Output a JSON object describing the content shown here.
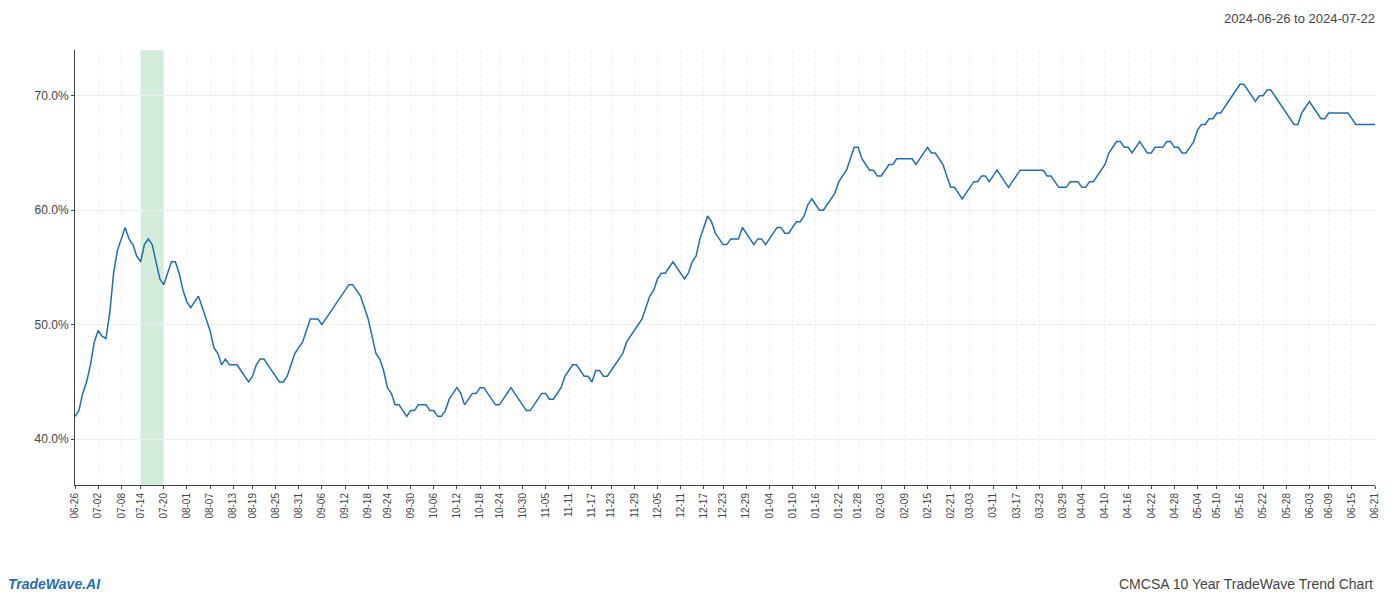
{
  "chart_data": {
    "type": "line",
    "title": "2024-06-26 to 2024-07-22",
    "annotations": [
      {
        "text": "TradeWave.AI",
        "color": "#1f6eb5"
      },
      {
        "text": "CMCSA 10 Year TradeWave Trend Chart"
      }
    ],
    "color": "#1f6eb5",
    "highlight": {
      "from": "07-14",
      "to": "07-20",
      "color": "#d4edda"
    },
    "ylim": [
      36.0,
      74.0
    ],
    "yticks": [
      {
        "value": 40.0,
        "label": "40.0%"
      },
      {
        "value": 50.0,
        "label": "50.0%"
      },
      {
        "value": 60.0,
        "label": "60.0%"
      },
      {
        "value": 70.0,
        "label": "70.0%"
      }
    ],
    "grid": true,
    "categories": [
      "06-26",
      null,
      null,
      null,
      null,
      null,
      "07-02",
      null,
      null,
      null,
      null,
      null,
      "07-08",
      null,
      null,
      null,
      null,
      "07-14",
      null,
      null,
      null,
      null,
      null,
      "07-20",
      null,
      null,
      null,
      null,
      null,
      "08-01",
      null,
      null,
      null,
      null,
      null,
      "08-07",
      null,
      null,
      null,
      null,
      null,
      "08-13",
      null,
      null,
      null,
      null,
      "08-19",
      null,
      null,
      null,
      null,
      null,
      "08-25",
      null,
      null,
      null,
      null,
      null,
      "08-31",
      null,
      null,
      null,
      null,
      null,
      "09-06",
      null,
      null,
      null,
      null,
      null,
      "09-12",
      null,
      null,
      null,
      null,
      null,
      "09-18",
      null,
      null,
      null,
      null,
      "09-24",
      null,
      null,
      null,
      null,
      null,
      "09-30",
      null,
      null,
      null,
      null,
      null,
      "10-06",
      null,
      null,
      null,
      null,
      null,
      "10-12",
      null,
      null,
      null,
      null,
      null,
      "10-18",
      null,
      null,
      null,
      null,
      "10-24",
      null,
      null,
      null,
      null,
      null,
      "10-30",
      null,
      null,
      null,
      null,
      null,
      "11-05",
      null,
      null,
      null,
      null,
      null,
      "11-11",
      null,
      null,
      null,
      null,
      null,
      "11-17",
      null,
      null,
      null,
      null,
      "11-23",
      null,
      null,
      null,
      null,
      null,
      "11-29",
      null,
      null,
      null,
      null,
      null,
      "12-05",
      null,
      null,
      null,
      null,
      null,
      "12-11",
      null,
      null,
      null,
      null,
      null,
      "12-17",
      null,
      null,
      null,
      null,
      "12-23",
      null,
      null,
      null,
      null,
      null,
      "12-29",
      null,
      null,
      null,
      null,
      null,
      "01-04",
      null,
      null,
      null,
      null,
      null,
      "01-10",
      null,
      null,
      null,
      null,
      null,
      "01-16",
      null,
      null,
      null,
      null,
      null,
      "01-22",
      null,
      null,
      null,
      null,
      "01-28",
      null,
      null,
      null,
      null,
      null,
      "02-03",
      null,
      null,
      null,
      null,
      null,
      "02-09",
      null,
      null,
      null,
      null,
      null,
      "02-15",
      null,
      null,
      null,
      null,
      null,
      "02-21",
      null,
      null,
      null,
      null,
      "03-03",
      null,
      null,
      null,
      null,
      null,
      "03-11",
      null,
      null,
      null,
      null,
      null,
      "03-17",
      null,
      null,
      null,
      null,
      null,
      "03-23",
      null,
      null,
      null,
      null,
      null,
      "03-29",
      null,
      null,
      null,
      null,
      "04-04",
      null,
      null,
      null,
      null,
      null,
      "04-10",
      null,
      null,
      null,
      null,
      null,
      "04-16",
      null,
      null,
      null,
      null,
      null,
      "04-22",
      null,
      null,
      null,
      null,
      null,
      "04-28",
      null,
      null,
      null,
      null,
      null,
      "05-04",
      null,
      null,
      null,
      null,
      "05-10",
      null,
      null,
      null,
      null,
      null,
      "05-16",
      null,
      null,
      null,
      null,
      null,
      "05-22",
      null,
      null,
      null,
      null,
      null,
      "05-28",
      null,
      null,
      null,
      null,
      null,
      "06-03",
      null,
      null,
      null,
      null,
      "06-09",
      null,
      null,
      null,
      null,
      null,
      "06-15",
      null,
      null,
      null,
      null,
      null,
      "06-21"
    ],
    "values": [
      42.0,
      42.5,
      44.0,
      45.0,
      46.5,
      48.5,
      49.5,
      49.0,
      48.8,
      51.0,
      54.5,
      56.5,
      57.5,
      58.5,
      57.5,
      57.0,
      56.0,
      55.5,
      57.0,
      57.5,
      57.0,
      55.5,
      54.0,
      53.5,
      54.5,
      55.5,
      55.5,
      54.5,
      53.0,
      52.0,
      51.5,
      52.0,
      52.5,
      51.5,
      50.5,
      49.5,
      48.0,
      47.5,
      46.5,
      47.0,
      46.5,
      46.5,
      46.5,
      46.0,
      45.5,
      45.0,
      45.5,
      46.5,
      47.0,
      47.0,
      46.5,
      46.0,
      45.5,
      45.0,
      45.0,
      45.5,
      46.5,
      47.5,
      48.0,
      48.5,
      49.5,
      50.5,
      50.5,
      50.5,
      50.0,
      50.5,
      51.0,
      51.5,
      52.0,
      52.5,
      53.0,
      53.5,
      53.5,
      53.0,
      52.5,
      51.5,
      50.5,
      49.0,
      47.5,
      47.0,
      46.0,
      44.5,
      44.0,
      43.0,
      43.0,
      42.5,
      42.0,
      42.5,
      42.5,
      43.0,
      43.0,
      43.0,
      42.5,
      42.5,
      42.0,
      42.0,
      42.5,
      43.5,
      44.0,
      44.5,
      44.0,
      43.0,
      43.5,
      44.0,
      44.0,
      44.5,
      44.5,
      44.0,
      43.5,
      43.0,
      43.0,
      43.5,
      44.0,
      44.5,
      44.0,
      43.5,
      43.0,
      42.5,
      42.5,
      43.0,
      43.5,
      44.0,
      44.0,
      43.5,
      43.5,
      44.0,
      44.5,
      45.5,
      46.0,
      46.5,
      46.5,
      46.0,
      45.5,
      45.5,
      45.0,
      46.0,
      46.0,
      45.5,
      45.5,
      46.0,
      46.5,
      47.0,
      47.5,
      48.5,
      49.0,
      49.5,
      50.0,
      50.5,
      51.5,
      52.5,
      53.0,
      54.0,
      54.5,
      54.5,
      55.0,
      55.5,
      55.0,
      54.5,
      54.0,
      54.5,
      55.5,
      56.0,
      57.5,
      58.5,
      59.5,
      59.0,
      58.0,
      57.5,
      57.0,
      57.0,
      57.5,
      57.5,
      57.5,
      58.5,
      58.0,
      57.5,
      57.0,
      57.5,
      57.5,
      57.0,
      57.5,
      58.0,
      58.5,
      58.5,
      58.0,
      58.0,
      58.5,
      59.0,
      59.0,
      59.5,
      60.5,
      61.0,
      60.5,
      60.0,
      60.0,
      60.5,
      61.0,
      61.5,
      62.5,
      63.0,
      63.5,
      64.5,
      65.5,
      65.5,
      64.5,
      64.0,
      63.5,
      63.5,
      63.0,
      63.0,
      63.5,
      64.0,
      64.0,
      64.5,
      64.5,
      64.5,
      64.5,
      64.5,
      64.0,
      64.5,
      65.0,
      65.5,
      65.0,
      65.0,
      64.5,
      64.0,
      63.0,
      62.0,
      62.0,
      61.5,
      61.0,
      61.5,
      62.0,
      62.5,
      62.5,
      63.0,
      63.0,
      62.5,
      63.0,
      63.5,
      63.0,
      62.5,
      62.0,
      62.5,
      63.0,
      63.5,
      63.5,
      63.5,
      63.5,
      63.5,
      63.5,
      63.5,
      63.0,
      63.0,
      62.5,
      62.0,
      62.0,
      62.0,
      62.5,
      62.5,
      62.5,
      62.0,
      62.0,
      62.5,
      62.5,
      63.0,
      63.5,
      64.0,
      65.0,
      65.5,
      66.0,
      66.0,
      65.5,
      65.5,
      65.0,
      65.5,
      66.0,
      65.5,
      65.0,
      65.0,
      65.5,
      65.5,
      65.5,
      66.0,
      66.0,
      65.5,
      65.5,
      65.0,
      65.0,
      65.5,
      66.0,
      67.0,
      67.5,
      67.5,
      68.0,
      68.0,
      68.5,
      68.5,
      69.0,
      69.5,
      70.0,
      70.5,
      71.0,
      71.0,
      70.5,
      70.0,
      69.5,
      70.0,
      70.0,
      70.5,
      70.5,
      70.0,
      69.5,
      69.0,
      68.5,
      68.0,
      67.5,
      67.5,
      68.5,
      69.0,
      69.5,
      69.0,
      68.5,
      68.0,
      68.0,
      68.5,
      68.5,
      68.5,
      68.5,
      68.5,
      68.5,
      68.0,
      67.5,
      67.5,
      67.5,
      67.5,
      67.5,
      67.5
    ]
  }
}
